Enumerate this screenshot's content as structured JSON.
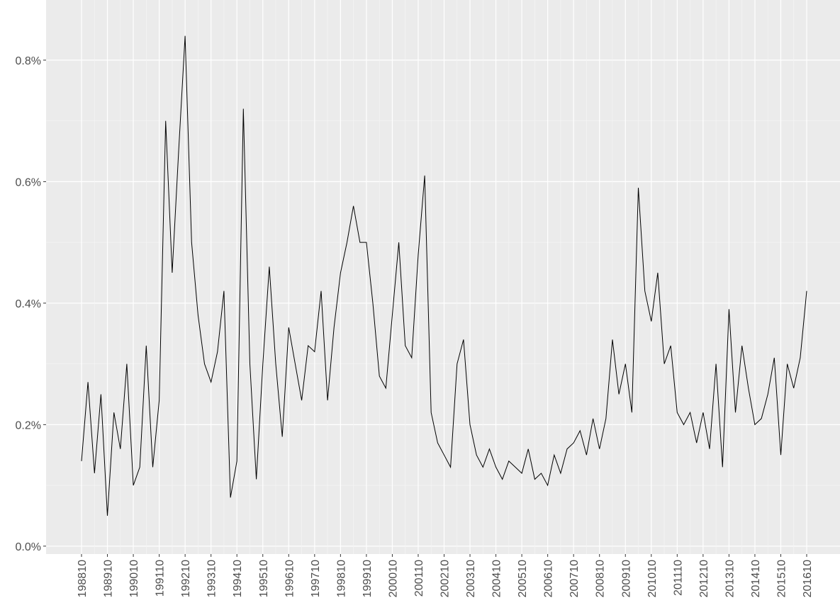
{
  "chart_data": {
    "type": "line",
    "color": "#000000",
    "grid": true,
    "categories": [
      "198810",
      null,
      null,
      null,
      "198910",
      null,
      null,
      null,
      "199010",
      null,
      null,
      null,
      "199110",
      null,
      null,
      null,
      "199210",
      null,
      null,
      null,
      "199310",
      null,
      null,
      null,
      "199410",
      null,
      null,
      null,
      "199510",
      null,
      null,
      null,
      "199610",
      null,
      null,
      null,
      "199710",
      null,
      null,
      null,
      "199810",
      null,
      null,
      null,
      "199910",
      null,
      null,
      null,
      "200010",
      null,
      null,
      null,
      "200110",
      null,
      null,
      null,
      "200210",
      null,
      null,
      null,
      "200310",
      null,
      null,
      null,
      "200410",
      null,
      null,
      null,
      "200510",
      null,
      null,
      null,
      "200610",
      null,
      null,
      null,
      "200710",
      null,
      null,
      null,
      "200810",
      null,
      null,
      null,
      "200910",
      null,
      null,
      null,
      "201010",
      null,
      null,
      null,
      "201110",
      null,
      null,
      null,
      "201210",
      null,
      null,
      null,
      "201310",
      null,
      null,
      null,
      "201410",
      null,
      null,
      null,
      "201510",
      null,
      null,
      null,
      "201610"
    ],
    "values": [
      0.14,
      0.27,
      0.12,
      0.25,
      0.05,
      0.22,
      0.16,
      0.3,
      0.1,
      0.13,
      0.33,
      0.13,
      0.24,
      0.7,
      0.45,
      0.65,
      0.84,
      0.5,
      0.38,
      0.3,
      0.27,
      0.32,
      0.42,
      0.08,
      0.14,
      0.72,
      0.3,
      0.11,
      0.3,
      0.46,
      0.3,
      0.18,
      0.36,
      0.3,
      0.24,
      0.33,
      0.32,
      0.42,
      0.24,
      0.36,
      0.45,
      0.5,
      0.56,
      0.5,
      0.5,
      0.4,
      0.28,
      0.26,
      0.38,
      0.5,
      0.33,
      0.31,
      0.48,
      0.61,
      0.22,
      0.17,
      0.15,
      0.13,
      0.3,
      0.34,
      0.2,
      0.15,
      0.13,
      0.16,
      0.13,
      0.11,
      0.14,
      0.13,
      0.12,
      0.16,
      0.11,
      0.12,
      0.1,
      0.15,
      0.12,
      0.16,
      0.17,
      0.19,
      0.15,
      0.21,
      0.16,
      0.21,
      0.34,
      0.25,
      0.3,
      0.22,
      0.59,
      0.42,
      0.37,
      0.45,
      0.3,
      0.33,
      0.22,
      0.2,
      0.22,
      0.17,
      0.22,
      0.16,
      0.3,
      0.13,
      0.39,
      0.22,
      0.33,
      0.26,
      0.2,
      0.21,
      0.25,
      0.31,
      0.15,
      0.3,
      0.26,
      0.31,
      0.42
    ],
    "ylim": [
      -0.013,
      0.899
    ],
    "yticks": [
      {
        "value": 0,
        "label": "0.0%"
      },
      {
        "value": 0.2,
        "label": "0.2%"
      },
      {
        "value": 0.4,
        "label": "0.4%"
      },
      {
        "value": 0.6,
        "label": "0.6%"
      },
      {
        "value": 0.8,
        "label": "0.8%"
      }
    ]
  }
}
